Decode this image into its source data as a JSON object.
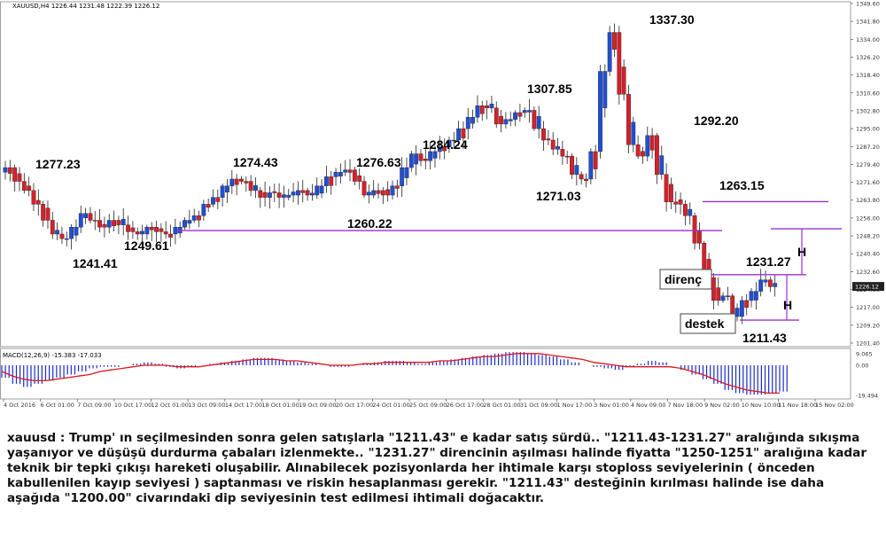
{
  "chart_data": {
    "type": "candlestick",
    "header": "XAUUSD,H4  1226.44 1231.48 1222.39 1226.12",
    "ylim": [
      1201.4,
      1349.6
    ],
    "ticks": [
      "1349.60",
      "1341.80",
      "1334.00",
      "1326.20",
      "1318.40",
      "1310.60",
      "1302.80",
      "1295.00",
      "1287.20",
      "1279.40",
      "1271.60",
      "1263.80",
      "1256.00",
      "1248.20",
      "1240.40",
      "1232.60",
      "1224.80",
      "1217.00",
      "1209.20",
      "1201.40"
    ],
    "current_price": "1226.12",
    "x_labels": [
      "4 Oct 2016",
      "6 Oct 01:00",
      "7 Oct 09:00",
      "10 Oct 17:00",
      "12 Oct 01:00",
      "13 Oct 09:00",
      "14 Oct 17:00",
      "18 Oct 01:00",
      "19 Oct 09:00",
      "20 Oct 17:00",
      "24 Oct 01:00",
      "25 Oct 09:00",
      "26 Oct 17:00",
      "28 Oct 01:00",
      "31 Oct 09:00",
      "1 Nov 17:00",
      "3 Nov 01:00",
      "4 Nov 09:00",
      "7 Nov 18:00",
      "9 Nov 02:00",
      "10 Nov 10:00",
      "11 Nov 18:00",
      "15 Nov 02:00"
    ],
    "price_path": [
      1276,
      1278,
      1272,
      1268,
      1262,
      1255,
      1249,
      1247,
      1252,
      1258,
      1255,
      1252,
      1255,
      1253,
      1250,
      1249,
      1252,
      1250,
      1249,
      1252,
      1255,
      1257,
      1262,
      1265,
      1270,
      1273,
      1272,
      1268,
      1265,
      1267,
      1265,
      1266,
      1268,
      1266,
      1270,
      1274,
      1276,
      1277,
      1272,
      1266,
      1268,
      1266,
      1270,
      1278,
      1284,
      1281,
      1285,
      1287,
      1290,
      1295,
      1300,
      1305,
      1304,
      1297,
      1299,
      1302,
      1303,
      1295,
      1290,
      1286,
      1283,
      1275,
      1273,
      1285,
      1320,
      1337,
      1310,
      1288,
      1283,
      1292,
      1275,
      1263,
      1262,
      1257,
      1245,
      1230,
      1220,
      1222,
      1213,
      1220,
      1224,
      1229,
      1226
    ],
    "annotations": [
      {
        "text": "1277.23",
        "price": 1277.23
      },
      {
        "text": "1241.41",
        "price": 1241.41
      },
      {
        "text": "1249.61",
        "price": 1249.61
      },
      {
        "text": "1274.43",
        "price": 1274.43
      },
      {
        "text": "1260.22",
        "price": 1260.22
      },
      {
        "text": "1276.63",
        "price": 1276.63
      },
      {
        "text": "1284.24",
        "price": 1284.24
      },
      {
        "text": "1271.03",
        "price": 1271.03
      },
      {
        "text": "1307.85",
        "price": 1307.85
      },
      {
        "text": "1337.30",
        "price": 1337.3
      },
      {
        "text": "1292.20",
        "price": 1292.2
      },
      {
        "text": "1263.15",
        "price": 1263.15
      },
      {
        "text": "1231.27",
        "price": 1231.27
      },
      {
        "text": "1211.43",
        "price": 1211.43
      }
    ],
    "levels": [
      {
        "price": 1250.5
      },
      {
        "price": 1263.15
      },
      {
        "price": 1251.3
      },
      {
        "price": 1231.27
      },
      {
        "price": 1211.43
      }
    ],
    "box_labels": {
      "resistance": "direnç",
      "support": "destek",
      "measure": "H"
    },
    "macd": {
      "header": "MACD(12,26,9) -15.383 -17.033",
      "ticks": [
        "9.065",
        "0.00",
        "-19.494"
      ],
      "histogram": [
        -8,
        -12,
        -14,
        -12,
        -10,
        -8,
        -6,
        -4,
        -2,
        -1,
        -1,
        0,
        1,
        2,
        1,
        -1,
        -2,
        -1,
        0,
        1,
        2,
        3,
        4,
        5,
        5,
        4,
        3,
        2,
        1,
        0,
        -1,
        -1,
        0,
        1,
        2,
        3,
        3,
        2,
        1,
        2,
        3,
        4,
        5,
        6,
        7,
        8,
        9,
        9,
        8,
        7,
        6,
        4,
        2,
        0,
        -1,
        -2,
        -3,
        -1,
        1,
        3,
        2,
        0,
        -3,
        -6,
        -9,
        -12,
        -16,
        -18,
        -19,
        -19,
        -18,
        -17
      ],
      "signal": [
        -4,
        -7,
        -9,
        -10,
        -10,
        -9,
        -8,
        -7,
        -6,
        -4,
        -3,
        -2,
        -1,
        0,
        0,
        0,
        -1,
        -1,
        -1,
        0,
        1,
        2,
        3,
        4,
        4,
        4,
        3,
        3,
        2,
        1,
        0,
        0,
        0,
        1,
        1,
        2,
        2,
        2,
        2,
        2,
        3,
        3,
        4,
        5,
        6,
        6,
        7,
        8,
        8,
        8,
        7,
        6,
        5,
        4,
        2,
        1,
        0,
        -1,
        -1,
        -1,
        -1,
        -1,
        -2,
        -4,
        -6,
        -9,
        -12,
        -14,
        -16,
        -17,
        -18,
        -18
      ]
    }
  },
  "commentary": "xauusd : Trump' ın seçilmesinden sonra gelen satışlarla \"1211.43\" e kadar satış sürdü.. \"1211.43-1231.27\" aralığında sıkışma yaşanıyor ve düşüşü durdurma çabaları izlenmekte.. \"1231.27\" direncinin aşılması halinde fiyatta \"1250-1251\" aralığına kadar teknik bir tepki çıkışı hareketi oluşabilir. Alınabilecek pozisyonlarda her ihtimale karşı stoploss seviyelerinin ( önceden kabullenilen kayıp seviyesi ) saptanması ve riskin hesaplanması gerekir. \"1211.43\" desteğinin kırılması halinde ise daha aşağıda \"1200.00\" civarındaki dip seviyesinin test edilmesi ihtimali doğacaktır.",
  "colors": {
    "bull": "#1f4fd6",
    "bear": "#d8202a",
    "level": "#9b2fd6",
    "macd_hist": "#1a2ccc",
    "macd_signal": "#e0141e",
    "grid": "#cccccc",
    "text": "#000000"
  }
}
